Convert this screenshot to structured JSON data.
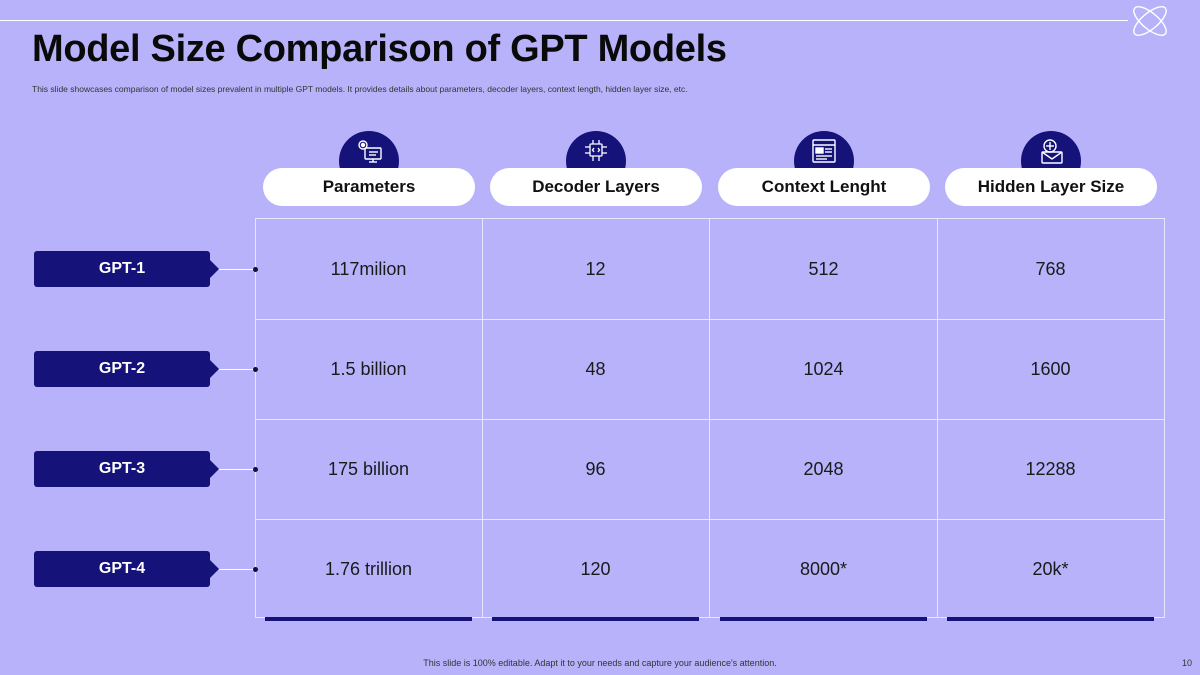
{
  "slide": {
    "title": "Model Size Comparison of GPT Models",
    "subtitle": "This slide showcases comparison of model sizes prevalent in multiple  GPT  models.  It provides details about parameters, decoder layers, context length, hidden layer size, etc.",
    "footer": "This slide is 100% editable.  Adapt it to your needs and capture your audience's attention.",
    "page_number": "10"
  },
  "columns": [
    {
      "label": "Parameters",
      "icon": "settings-monitor-icon"
    },
    {
      "label": "Decoder Layers",
      "icon": "circuit-code-icon"
    },
    {
      "label": "Context Lenght",
      "icon": "document-window-icon"
    },
    {
      "label": "Hidden Layer Size",
      "icon": "envelope-layers-icon"
    }
  ],
  "rows": [
    {
      "label": "GPT-1",
      "cells": [
        "117milion",
        "12",
        "512",
        "768"
      ]
    },
    {
      "label": "GPT-2",
      "cells": [
        "1.5 billion",
        "48",
        "1024",
        "1600"
      ]
    },
    {
      "label": "GPT-3",
      "cells": [
        "175 billion",
        "96",
        "2048",
        "12288"
      ]
    },
    {
      "label": "GPT-4",
      "cells": [
        "1.76 trillion",
        "120",
        "8000*",
        "20k*"
      ]
    }
  ],
  "colors": {
    "background": "#b8b2fa",
    "accent": "#15127a",
    "header_pill": "#ffffff",
    "grid_line": "#e8e6ff"
  }
}
